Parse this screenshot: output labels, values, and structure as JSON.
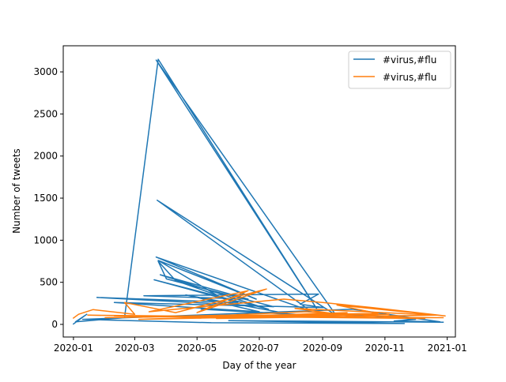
{
  "chart_data": {
    "type": "line",
    "title": "",
    "xlabel": "Day of the year",
    "ylabel": "Number of tweets",
    "x_ticks": [
      "2020-01",
      "2020-03",
      "2020-05",
      "2020-07",
      "2020-09",
      "2020-11",
      "2021-01"
    ],
    "y_ticks": [
      "0",
      "500",
      "1000",
      "1500",
      "2000",
      "2500",
      "3000"
    ],
    "xlim": [
      "2019-12-22",
      "2021-01-09"
    ],
    "ylim": [
      -150,
      3310
    ],
    "grid": false,
    "legend_position": "top-right",
    "series": [
      {
        "name": "#virus,#flu",
        "color": "#1f77b4",
        "points": [
          [
            "2020-01-01",
            5
          ],
          [
            "2020-01-14",
            120
          ],
          [
            "2020-01-03",
            30
          ],
          [
            "2020-02-20",
            80
          ],
          [
            "2020-03-24",
            3150
          ],
          [
            "2020-08-26",
            190
          ],
          [
            "2020-03-22",
            3140
          ],
          [
            "2020-09-14",
            110
          ],
          [
            "2020-03-23",
            1475
          ],
          [
            "2020-08-20",
            160
          ],
          [
            "2020-03-22",
            800
          ],
          [
            "2020-06-28",
            300
          ],
          [
            "2020-03-24",
            760
          ],
          [
            "2020-05-20",
            350
          ],
          [
            "2020-04-10",
            520
          ],
          [
            "2020-03-24",
            750
          ],
          [
            "2020-04-01",
            540
          ],
          [
            "2020-07-15",
            210
          ],
          [
            "2020-01-24",
            320
          ],
          [
            "2020-06-10",
            260
          ],
          [
            "2020-03-20",
            530
          ],
          [
            "2020-07-10",
            180
          ],
          [
            "2020-03-26",
            590
          ],
          [
            "2020-06-20",
            300
          ],
          [
            "2020-03-10",
            340
          ],
          [
            "2020-08-28",
            360
          ],
          [
            "2020-08-10",
            240
          ],
          [
            "2020-09-02",
            200
          ],
          [
            "2020-02-10",
            260
          ],
          [
            "2020-07-01",
            150
          ],
          [
            "2020-04-20",
            350
          ],
          [
            "2020-08-01",
            120
          ],
          [
            "2020-05-05",
            180
          ],
          [
            "2020-09-20",
            90
          ],
          [
            "2020-10-10",
            110
          ],
          [
            "2020-12-01",
            60
          ],
          [
            "2020-11-10",
            40
          ],
          [
            "2020-12-25",
            30
          ],
          [
            "2020-09-30",
            180
          ],
          [
            "2020-01-10",
            60
          ],
          [
            "2020-05-15",
            20
          ],
          [
            "2020-11-20",
            10
          ],
          [
            "2020-06-01",
            45
          ],
          [
            "2020-12-28",
            25
          ]
        ]
      },
      {
        "name": "#virus,#flu",
        "color": "#ff7f0e",
        "points": [
          [
            "2020-01-01",
            75
          ],
          [
            "2020-01-06",
            120
          ],
          [
            "2020-01-20",
            175
          ],
          [
            "2020-03-01",
            120
          ],
          [
            "2020-02-20",
            260
          ],
          [
            "2020-04-10",
            140
          ],
          [
            "2020-07-08",
            420
          ],
          [
            "2020-05-01",
            140
          ],
          [
            "2020-06-20",
            400
          ],
          [
            "2020-03-15",
            150
          ],
          [
            "2020-07-25",
            300
          ],
          [
            "2020-09-01",
            260
          ],
          [
            "2020-10-20",
            200
          ],
          [
            "2020-11-25",
            150
          ],
          [
            "2020-12-30",
            100
          ],
          [
            "2020-09-15",
            230
          ],
          [
            "2020-10-25",
            130
          ],
          [
            "2020-02-01",
            80
          ],
          [
            "2020-06-01",
            110
          ],
          [
            "2020-08-15",
            150
          ],
          [
            "2020-12-10",
            70
          ],
          [
            "2020-01-15",
            110
          ],
          [
            "2020-04-25",
            90
          ],
          [
            "2020-11-05",
            120
          ],
          [
            "2020-03-05",
            60
          ],
          [
            "2020-09-25",
            140
          ],
          [
            "2020-05-20",
            70
          ],
          [
            "2020-12-20",
            110
          ],
          [
            "2020-08-05",
            190
          ],
          [
            "2020-10-05",
            90
          ],
          [
            "2020-02-10",
            100
          ],
          [
            "2020-12-28",
            80
          ]
        ]
      }
    ]
  }
}
